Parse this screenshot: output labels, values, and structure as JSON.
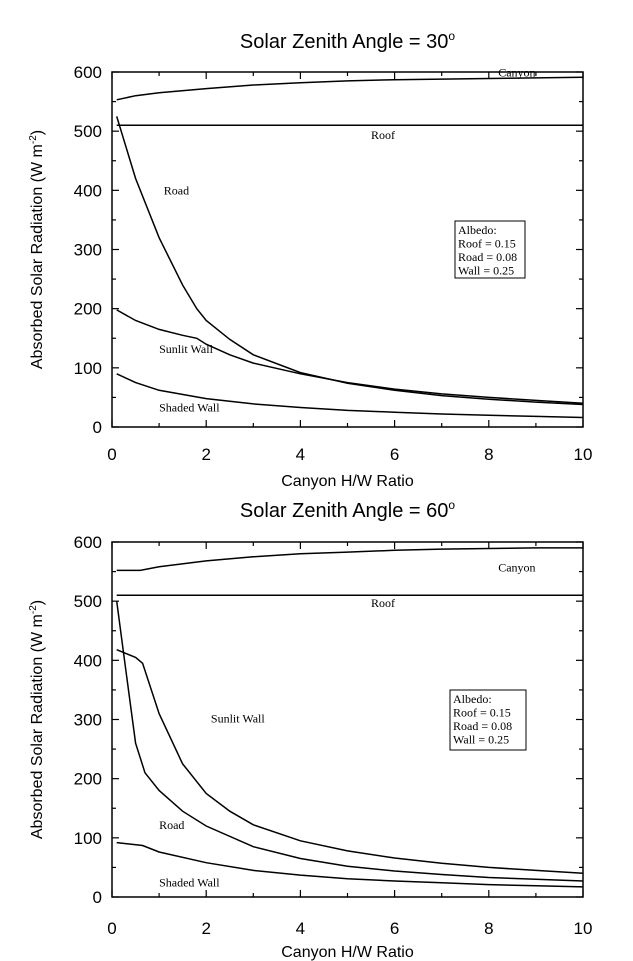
{
  "chart_data": [
    {
      "type": "line",
      "title": "Solar Zenith Angle = 30",
      "title_superscript": "o",
      "xlabel": "Canyon H/W Ratio",
      "ylabel": "Absorbed Solar Radiation (W m",
      "ylabel_superscript": "-2",
      "ylabel_suffix": ")",
      "xlim": [
        0,
        10
      ],
      "ylim": [
        0,
        600
      ],
      "xticks": [
        0,
        2,
        4,
        6,
        8,
        10
      ],
      "yticks": [
        0,
        100,
        200,
        300,
        400,
        500,
        600
      ],
      "grid": false,
      "legend": {
        "placement": "right",
        "title": "Albedo:",
        "lines": [
          "Roof = 0.15",
          "Road = 0.08",
          "Wall = 0.25"
        ]
      },
      "series": [
        {
          "name": "Canyon",
          "label_at": [
            8.2,
            592
          ],
          "x": [
            0.1,
            0.5,
            1,
            2,
            3,
            4,
            5,
            6,
            7,
            8,
            9,
            10
          ],
          "y": [
            553,
            560,
            565,
            572,
            578,
            582,
            585,
            587,
            588,
            589,
            590,
            591
          ]
        },
        {
          "name": "Roof",
          "label_at": [
            5.5,
            487
          ],
          "x": [
            0.1,
            10
          ],
          "y": [
            510,
            510
          ]
        },
        {
          "name": "Road",
          "label_at": [
            1.1,
            393
          ],
          "x": [
            0.1,
            0.5,
            1.0,
            1.5,
            1.8,
            2.0,
            2.5,
            3.0,
            4.0,
            5.0,
            6.0,
            7.0,
            8.0,
            9.0,
            10.0
          ],
          "y": [
            525,
            420,
            320,
            240,
            200,
            180,
            148,
            122,
            92,
            74,
            62,
            53,
            47,
            42,
            38
          ]
        },
        {
          "name": "Sunlit Wall",
          "label_at": [
            1.0,
            125
          ],
          "x": [
            0.1,
            0.5,
            1.0,
            1.5,
            1.8,
            2.0,
            2.5,
            3.0,
            4.0,
            5.0,
            6.0,
            7.0,
            8.0,
            9.0,
            10.0
          ],
          "y": [
            198,
            180,
            165,
            155,
            150,
            140,
            122,
            108,
            90,
            75,
            64,
            56,
            50,
            45,
            40
          ]
        },
        {
          "name": "Shaded Wall",
          "label_at": [
            1.0,
            26
          ],
          "x": [
            0.1,
            0.5,
            1,
            2,
            3,
            4,
            5,
            6,
            7,
            8,
            9,
            10
          ],
          "y": [
            90,
            75,
            62,
            48,
            39,
            33,
            28,
            25,
            22,
            20,
            18,
            16
          ]
        }
      ]
    },
    {
      "type": "line",
      "title": "Solar Zenith Angle = 60",
      "title_superscript": "o",
      "xlabel": "Canyon H/W Ratio",
      "ylabel": "Absorbed Solar Radiation (W m",
      "ylabel_superscript": "-2",
      "ylabel_suffix": ")",
      "xlim": [
        0,
        10
      ],
      "ylim": [
        0,
        600
      ],
      "xticks": [
        0,
        2,
        4,
        6,
        8,
        10
      ],
      "yticks": [
        0,
        100,
        200,
        300,
        400,
        500,
        600
      ],
      "grid": false,
      "legend": {
        "placement": "right",
        "title": "Albedo:",
        "lines": [
          "Roof = 0.15",
          "Road = 0.08",
          "Wall = 0.25"
        ]
      },
      "series": [
        {
          "name": "Canyon",
          "label_at": [
            8.2,
            550
          ],
          "x": [
            0.1,
            0.6,
            1,
            2,
            3,
            4,
            5,
            6,
            7,
            8,
            9,
            10
          ],
          "y": [
            552,
            552,
            558,
            568,
            575,
            580,
            583,
            586,
            588,
            589,
            590,
            590
          ]
        },
        {
          "name": "Roof",
          "label_at": [
            5.5,
            490
          ],
          "x": [
            0.1,
            10
          ],
          "y": [
            510,
            510
          ]
        },
        {
          "name": "Sunlit Wall",
          "label_at": [
            2.1,
            295
          ],
          "x": [
            0.1,
            0.5,
            0.65,
            1.0,
            1.5,
            2.0,
            2.5,
            3.0,
            4.0,
            5.0,
            6.0,
            7.0,
            8.0,
            9.0,
            10.0
          ],
          "y": [
            418,
            405,
            395,
            310,
            225,
            175,
            145,
            122,
            95,
            78,
            66,
            57,
            50,
            45,
            40
          ]
        },
        {
          "name": "Road",
          "label_at": [
            1.0,
            115
          ],
          "x": [
            0.1,
            0.3,
            0.5,
            0.7,
            1.0,
            1.5,
            2.0,
            3.0,
            4.0,
            5.0,
            6.0,
            7.0,
            8.0,
            9.0,
            10.0
          ],
          "y": [
            500,
            380,
            260,
            210,
            180,
            145,
            120,
            85,
            65,
            52,
            44,
            38,
            33,
            30,
            27
          ]
        },
        {
          "name": "Shaded Wall",
          "label_at": [
            1.0,
            18
          ],
          "x": [
            0.1,
            0.65,
            1,
            2,
            3,
            4,
            5,
            6,
            7,
            8,
            9,
            10
          ],
          "y": [
            92,
            87,
            76,
            58,
            45,
            37,
            31,
            27,
            24,
            21,
            19,
            17
          ]
        }
      ]
    }
  ]
}
